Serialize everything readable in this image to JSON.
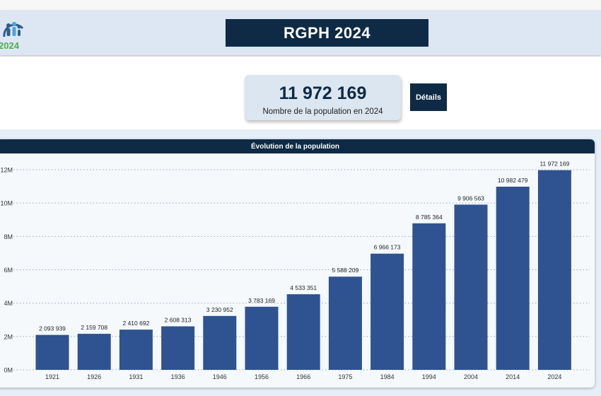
{
  "header": {
    "logo_text": "2024",
    "title": "RGPH 2024"
  },
  "kpi": {
    "value": "11 972 169",
    "label": "Nombre de la population en 2024"
  },
  "details_button": {
    "label": "Détails"
  },
  "colors": {
    "navy": "#0e2a45",
    "bar": "#2e5390",
    "header_bg": "#dce7f3",
    "card_bg": "#dbe6f1"
  },
  "chart_data": {
    "type": "bar",
    "title": "Évolution de la population",
    "categories": [
      "1921",
      "1926",
      "1931",
      "1936",
      "1946",
      "1956",
      "1966",
      "1975",
      "1984",
      "1994",
      "2004",
      "2014",
      "2024"
    ],
    "values": [
      2093939,
      2159708,
      2410692,
      2608313,
      3230952,
      3783169,
      4533351,
      5588209,
      6966173,
      8785364,
      9906563,
      10982479,
      11972169
    ],
    "data_labels": [
      "2 093 939",
      "2 159 708",
      "2 410 692",
      "2 608 313",
      "3 230 952",
      "3 783 169",
      "4 533 351",
      "5 588 209",
      "6 966 173",
      "8 785 364",
      "9 906 563",
      "10 982 479",
      "11 972 169"
    ],
    "y_ticks": [
      0,
      2000000,
      4000000,
      6000000,
      8000000,
      10000000,
      12000000
    ],
    "y_tick_labels": [
      "0M",
      "2M",
      "4M",
      "6M",
      "8M",
      "10M",
      "12M"
    ],
    "ylim": [
      0,
      12000000
    ],
    "grid": true,
    "xlabel": "",
    "ylabel": ""
  }
}
